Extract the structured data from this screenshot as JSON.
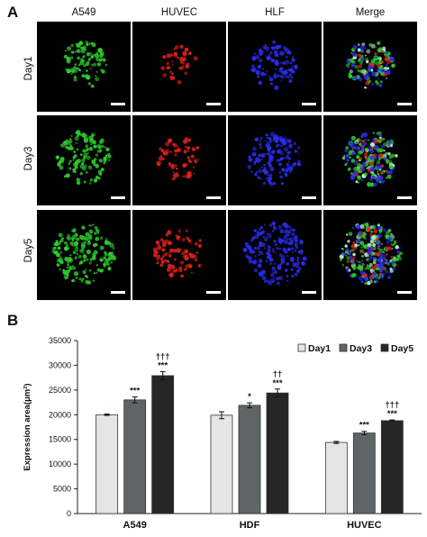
{
  "panel_a": {
    "letter": "A",
    "columns": [
      "A549",
      "HUVEC",
      "HLF",
      "Merge"
    ],
    "rows": [
      "Day1",
      "Day3",
      "Day5"
    ],
    "channel_colors": {
      "A549": "#2ecc2e",
      "HUVEC": "#e0201c",
      "HLF": "#2a2cf0"
    }
  },
  "panel_b": {
    "letter": "B"
  },
  "chart_data": {
    "type": "bar",
    "ylabel": "Expression area(μm²)",
    "xlabel": "",
    "ylim": [
      0,
      35000
    ],
    "yticks": [
      0,
      5000,
      10000,
      15000,
      20000,
      25000,
      30000,
      35000
    ],
    "categories": [
      "A549",
      "HDF",
      "HUVEC"
    ],
    "legend_position": "top-right",
    "series": [
      {
        "name": "Day1",
        "color": "#e3e6e4",
        "values": [
          20000,
          19900,
          14400
        ],
        "errors": [
          150,
          700,
          200
        ],
        "annotations": [
          "",
          "",
          ""
        ]
      },
      {
        "name": "Day3",
        "color": "#5f6566",
        "values": [
          23000,
          21900,
          16300
        ],
        "errors": [
          600,
          500,
          350
        ],
        "annotations": [
          "***",
          "*",
          "***"
        ]
      },
      {
        "name": "Day5",
        "color": "#262626",
        "values": [
          27900,
          24400,
          18800
        ],
        "errors": [
          800,
          800,
          150
        ],
        "annotations": [
          "†††\n***",
          "††\n***",
          "†††\n***"
        ]
      }
    ]
  }
}
